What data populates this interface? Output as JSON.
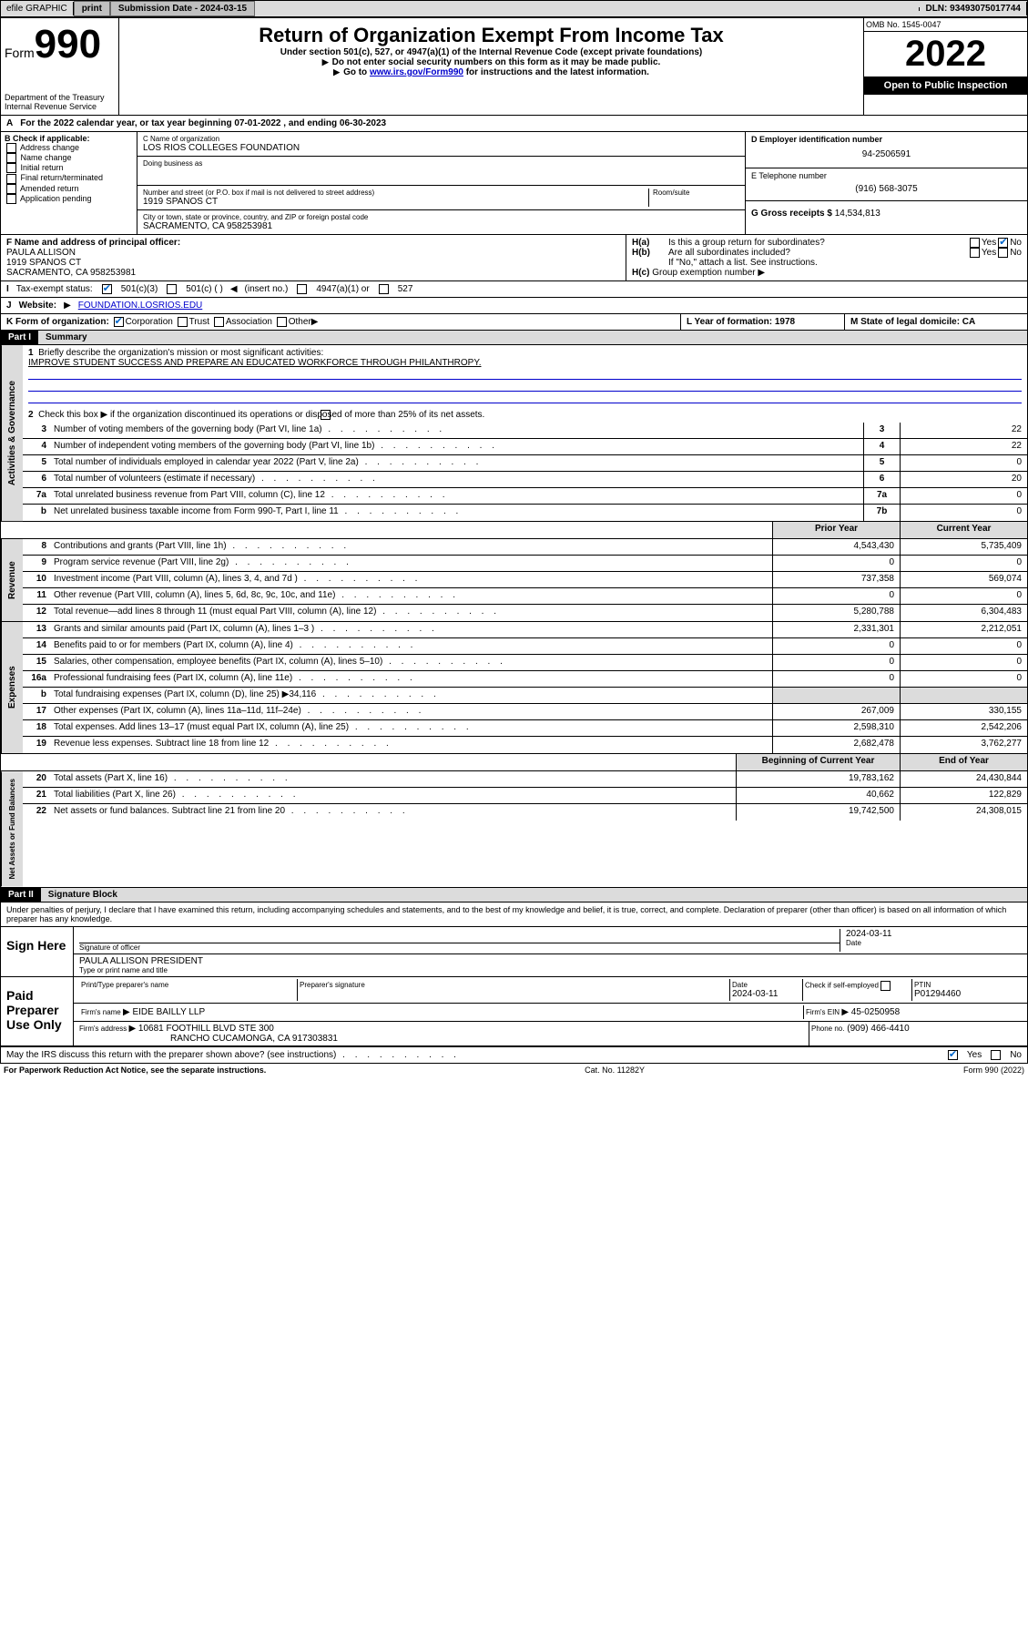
{
  "topbar": {
    "efile": "efile GRAPHIC",
    "print": "print",
    "sub_label": "Submission Date - 2024-03-15",
    "dln": "DLN: 93493075017744"
  },
  "header": {
    "form_label": "Form",
    "form_num": "990",
    "dept": "Department of the Treasury\nInternal Revenue Service",
    "title": "Return of Organization Exempt From Income Tax",
    "sub1": "Under section 501(c), 527, or 4947(a)(1) of the Internal Revenue Code (except private foundations)",
    "sub2": "Do not enter social security numbers on this form as it may be made public.",
    "sub3_pre": "Go to ",
    "sub3_link": "www.irs.gov/Form990",
    "sub3_post": " for instructions and the latest information.",
    "omb": "OMB No. 1545-0047",
    "year": "2022",
    "open": "Open to Public Inspection"
  },
  "row_a": {
    "text": "For the 2022 calendar year, or tax year beginning 07-01-2022   , and ending 06-30-2023"
  },
  "col_b": {
    "title": "B Check if applicable:",
    "items": [
      "Address change",
      "Name change",
      "Initial return",
      "Final return/terminated",
      "Amended return",
      "Application pending"
    ]
  },
  "col_c": {
    "name_label": "C Name of organization",
    "name": "LOS RIOS COLLEGES FOUNDATION",
    "dba_label": "Doing business as",
    "street_label": "Number and street (or P.O. box if mail is not delivered to street address)",
    "room_label": "Room/suite",
    "street": "1919 SPANOS CT",
    "city_label": "City or town, state or province, country, and ZIP or foreign postal code",
    "city": "SACRAMENTO, CA  958253981"
  },
  "col_d": {
    "ein_label": "D Employer identification number",
    "ein": "94-2506591",
    "phone_label": "E Telephone number",
    "phone": "(916) 568-3075",
    "gross_label": "G Gross receipts $",
    "gross": "14,534,813"
  },
  "row_f": {
    "label": "F  Name and address of principal officer:",
    "name": "PAULA ALLISON",
    "addr1": "1919 SPANOS CT",
    "addr2": "SACRAMENTO, CA  958253981"
  },
  "row_h": {
    "ha": "Is this a group return for subordinates?",
    "hb": "Are all subordinates included?",
    "hb_note": "If \"No,\" attach a list. See instructions.",
    "hc": "Group exemption number",
    "yes": "Yes",
    "no": "No"
  },
  "row_i": {
    "label": "Tax-exempt status:",
    "opt1": "501(c)(3)",
    "opt2": "501(c) (  )",
    "insert": "(insert no.)",
    "opt3": "4947(a)(1) or",
    "opt4": "527"
  },
  "row_j": {
    "label": "Website:",
    "url": "FOUNDATION.LOSRIOS.EDU"
  },
  "row_k": {
    "label": "K Form of organization:",
    "corp": "Corporation",
    "trust": "Trust",
    "assoc": "Association",
    "other": "Other"
  },
  "row_l": {
    "label": "L Year of formation: 1978"
  },
  "row_m": {
    "label": "M State of legal domicile: CA"
  },
  "part1": {
    "hdr": "Part I",
    "title": "Summary"
  },
  "summary": {
    "line1_label": "Briefly describe the organization's mission or most significant activities:",
    "line1_text": "IMPROVE STUDENT SUCCESS AND PREPARE AN EDUCATED WORKFORCE THROUGH PHILANTHROPY.",
    "line2": "Check this box ▶       if the organization discontinued its operations or disposed of more than 25% of its net assets.",
    "lines_gov": [
      {
        "n": "3",
        "t": "Number of voting members of the governing body (Part VI, line 1a)",
        "c": "3",
        "v": "22"
      },
      {
        "n": "4",
        "t": "Number of independent voting members of the governing body (Part VI, line 1b)",
        "c": "4",
        "v": "22"
      },
      {
        "n": "5",
        "t": "Total number of individuals employed in calendar year 2022 (Part V, line 2a)",
        "c": "5",
        "v": "0"
      },
      {
        "n": "6",
        "t": "Total number of volunteers (estimate if necessary)",
        "c": "6",
        "v": "20"
      },
      {
        "n": "7a",
        "t": "Total unrelated business revenue from Part VIII, column (C), line 12",
        "c": "7a",
        "v": "0"
      },
      {
        "n": "b",
        "t": "Net unrelated business taxable income from Form 990-T, Part I, line 11",
        "c": "7b",
        "v": "0"
      }
    ],
    "prior_hdr": "Prior Year",
    "curr_hdr": "Current Year",
    "rev": [
      {
        "n": "8",
        "t": "Contributions and grants (Part VIII, line 1h)",
        "p": "4,543,430",
        "c": "5,735,409"
      },
      {
        "n": "9",
        "t": "Program service revenue (Part VIII, line 2g)",
        "p": "0",
        "c": "0"
      },
      {
        "n": "10",
        "t": "Investment income (Part VIII, column (A), lines 3, 4, and 7d )",
        "p": "737,358",
        "c": "569,074"
      },
      {
        "n": "11",
        "t": "Other revenue (Part VIII, column (A), lines 5, 6d, 8c, 9c, 10c, and 11e)",
        "p": "0",
        "c": "0"
      },
      {
        "n": "12",
        "t": "Total revenue—add lines 8 through 11 (must equal Part VIII, column (A), line 12)",
        "p": "5,280,788",
        "c": "6,304,483"
      }
    ],
    "exp": [
      {
        "n": "13",
        "t": "Grants and similar amounts paid (Part IX, column (A), lines 1–3 )",
        "p": "2,331,301",
        "c": "2,212,051"
      },
      {
        "n": "14",
        "t": "Benefits paid to or for members (Part IX, column (A), line 4)",
        "p": "0",
        "c": "0"
      },
      {
        "n": "15",
        "t": "Salaries, other compensation, employee benefits (Part IX, column (A), lines 5–10)",
        "p": "0",
        "c": "0"
      },
      {
        "n": "16a",
        "t": "Professional fundraising fees (Part IX, column (A), line 11e)",
        "p": "0",
        "c": "0"
      },
      {
        "n": "b",
        "t": "Total fundraising expenses (Part IX, column (D), line 25) ▶34,116",
        "p": "",
        "c": ""
      },
      {
        "n": "17",
        "t": "Other expenses (Part IX, column (A), lines 11a–11d, 11f–24e)",
        "p": "267,009",
        "c": "330,155"
      },
      {
        "n": "18",
        "t": "Total expenses. Add lines 13–17 (must equal Part IX, column (A), line 25)",
        "p": "2,598,310",
        "c": "2,542,206"
      },
      {
        "n": "19",
        "t": "Revenue less expenses. Subtract line 18 from line 12",
        "p": "2,682,478",
        "c": "3,762,277"
      }
    ],
    "begin_hdr": "Beginning of Current Year",
    "end_hdr": "End of Year",
    "net": [
      {
        "n": "20",
        "t": "Total assets (Part X, line 16)",
        "p": "19,783,162",
        "c": "24,430,844"
      },
      {
        "n": "21",
        "t": "Total liabilities (Part X, line 26)",
        "p": "40,662",
        "c": "122,829"
      },
      {
        "n": "22",
        "t": "Net assets or fund balances. Subtract line 21 from line 20",
        "p": "19,742,500",
        "c": "24,308,015"
      }
    ]
  },
  "vlabels": {
    "gov": "Activities & Governance",
    "rev": "Revenue",
    "exp": "Expenses",
    "net": "Net Assets or Fund Balances"
  },
  "part2": {
    "hdr": "Part II",
    "title": "Signature Block"
  },
  "sig": {
    "penalty": "Under penalties of perjury, I declare that I have examined this return, including accompanying schedules and statements, and to the best of my knowledge and belief, it is true, correct, and complete. Declaration of preparer (other than officer) is based on all information of which preparer has any knowledge.",
    "sign_here": "Sign Here",
    "sig_officer": "Signature of officer",
    "date1": "2024-03-11",
    "date_label": "Date",
    "officer_name": "PAULA ALLISON  PRESIDENT",
    "type_name": "Type or print name and title",
    "paid": "Paid Preparer Use Only",
    "prep_name_label": "Print/Type preparer's name",
    "prep_sig_label": "Preparer's signature",
    "date2": "2024-03-11",
    "check_if": "Check         if self-employed",
    "ptin_label": "PTIN",
    "ptin": "P01294460",
    "firm_name_label": "Firm's name   ",
    "firm_name": "EIDE BAILLY LLP",
    "firm_ein_label": "Firm's EIN ",
    "firm_ein": "45-0250958",
    "firm_addr_label": "Firm's address ",
    "firm_addr1": "10681 FOOTHILL BLVD STE 300",
    "firm_addr2": "RANCHO CUCAMONGA, CA  917303831",
    "phone_label": "Phone no.",
    "phone": "(909) 466-4410",
    "discuss": "May the IRS discuss this return with the preparer shown above? (see instructions)"
  },
  "footer": {
    "left": "For Paperwork Reduction Act Notice, see the separate instructions.",
    "mid": "Cat. No. 11282Y",
    "right": "Form 990 (2022)"
  }
}
